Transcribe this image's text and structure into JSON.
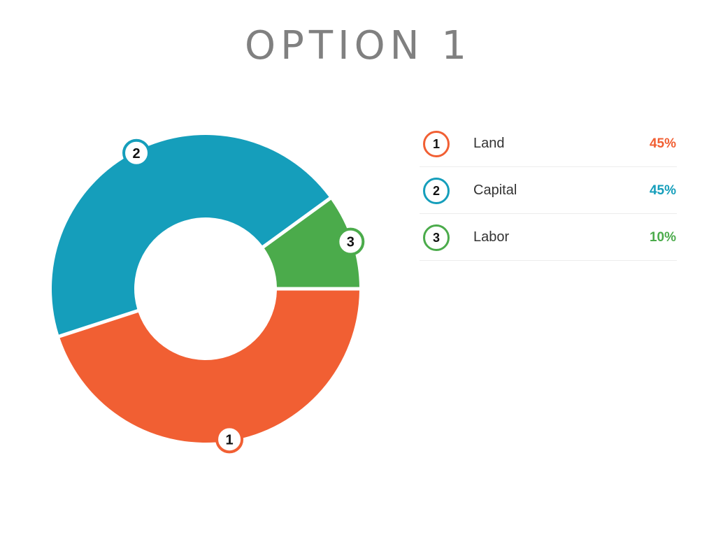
{
  "title": "OPTION 1",
  "chart_data": {
    "type": "pie",
    "variant": "donut",
    "title": "OPTION 1",
    "categories": [
      "Land",
      "Capital",
      "Labor"
    ],
    "labels": [
      "1",
      "2",
      "3"
    ],
    "values": [
      45,
      45,
      10
    ],
    "value_labels": [
      "45%",
      "45%",
      "10%"
    ],
    "colors": [
      "#F15F33",
      "#159EBB",
      "#4BAB4B"
    ],
    "legend_placement": "right"
  }
}
